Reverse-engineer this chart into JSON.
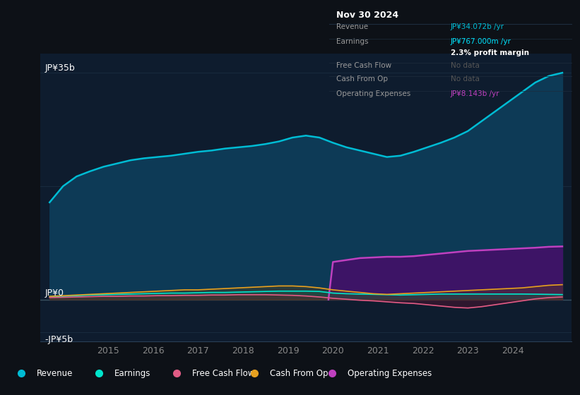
{
  "bg_color": "#0d1117",
  "plot_bg_color": "#0e1c2e",
  "grid_color": "#1a2d40",
  "title_date": "Nov 30 2024",
  "tooltip": {
    "Revenue": {
      "value": "JP¥34.072b /yr",
      "color": "#00bcd4"
    },
    "Earnings": {
      "value": "JP¥767.000m /yr",
      "color": "#00e5ff"
    },
    "profit_margin": "2.3% profit margin",
    "Free Cash Flow": {
      "value": "No data",
      "color": "#555555"
    },
    "Cash From Op": {
      "value": "No data",
      "color": "#555555"
    },
    "Operating Expenses": {
      "value": "JP¥8.143b /yr",
      "color": "#bf40bf"
    }
  },
  "ylabel_top": "JP¥35b",
  "ylabel_mid": "JP¥0",
  "ylabel_bot": "-JP¥5b",
  "ylim": [
    -6.5,
    38
  ],
  "xlim_start": 2013.5,
  "xlim_end": 2025.3,
  "xticks": [
    2015,
    2016,
    2017,
    2018,
    2019,
    2020,
    2021,
    2022,
    2023,
    2024
  ],
  "revenue_color": "#00bcd4",
  "revenue_fill": "#0d3a56",
  "earnings_color": "#00e5cc",
  "fcf_color": "#e05c85",
  "cashfromop_color": "#e6a020",
  "opex_color": "#bf40bf",
  "opex_fill": "#3d1466",
  "legend": [
    {
      "label": "Revenue",
      "color": "#00bcd4"
    },
    {
      "label": "Earnings",
      "color": "#00e5cc"
    },
    {
      "label": "Free Cash Flow",
      "color": "#e05c85"
    },
    {
      "label": "Cash From Op",
      "color": "#e6a020"
    },
    {
      "label": "Operating Expenses",
      "color": "#bf40bf"
    }
  ],
  "years": [
    2013.7,
    2014.0,
    2014.3,
    2014.6,
    2014.9,
    2015.2,
    2015.5,
    2015.8,
    2016.1,
    2016.4,
    2016.7,
    2017.0,
    2017.3,
    2017.6,
    2017.9,
    2018.2,
    2018.5,
    2018.8,
    2019.1,
    2019.4,
    2019.7,
    2020.0,
    2020.3,
    2020.6,
    2020.9,
    2021.2,
    2021.5,
    2021.8,
    2022.1,
    2022.4,
    2022.7,
    2023.0,
    2023.3,
    2023.6,
    2023.9,
    2024.2,
    2024.5,
    2024.8,
    2025.1
  ],
  "revenue": [
    15.0,
    17.5,
    19.0,
    19.8,
    20.5,
    21.0,
    21.5,
    21.8,
    22.0,
    22.2,
    22.5,
    22.8,
    23.0,
    23.3,
    23.5,
    23.7,
    24.0,
    24.4,
    25.0,
    25.3,
    25.0,
    24.2,
    23.5,
    23.0,
    22.5,
    22.0,
    22.2,
    22.8,
    23.5,
    24.2,
    25.0,
    26.0,
    27.5,
    29.0,
    30.5,
    32.0,
    33.5,
    34.5,
    35.0
  ],
  "earnings": [
    0.4,
    0.5,
    0.6,
    0.7,
    0.75,
    0.8,
    0.85,
    0.9,
    0.95,
    1.0,
    1.0,
    1.05,
    1.1,
    1.1,
    1.15,
    1.2,
    1.25,
    1.3,
    1.3,
    1.3,
    1.25,
    1.0,
    0.9,
    0.85,
    0.8,
    0.75,
    0.7,
    0.75,
    0.8,
    0.85,
    0.85,
    0.85,
    0.85,
    0.85,
    0.85,
    0.85,
    0.83,
    0.8,
    0.77
  ],
  "fcf": [
    0.3,
    0.35,
    0.4,
    0.45,
    0.5,
    0.5,
    0.55,
    0.55,
    0.6,
    0.6,
    0.65,
    0.65,
    0.7,
    0.7,
    0.75,
    0.75,
    0.75,
    0.7,
    0.65,
    0.55,
    0.4,
    0.2,
    0.05,
    -0.1,
    -0.2,
    -0.35,
    -0.5,
    -0.6,
    -0.8,
    -1.0,
    -1.2,
    -1.3,
    -1.1,
    -0.8,
    -0.5,
    -0.2,
    0.1,
    0.3,
    0.4
  ],
  "cashfromop": [
    0.5,
    0.6,
    0.7,
    0.8,
    0.9,
    1.0,
    1.1,
    1.2,
    1.3,
    1.4,
    1.5,
    1.5,
    1.6,
    1.7,
    1.8,
    1.9,
    2.0,
    2.1,
    2.1,
    2.0,
    1.8,
    1.5,
    1.3,
    1.1,
    0.9,
    0.8,
    0.9,
    1.0,
    1.1,
    1.2,
    1.3,
    1.4,
    1.5,
    1.6,
    1.7,
    1.8,
    2.0,
    2.2,
    2.3
  ],
  "opex_x": [
    2019.9,
    2020.0,
    2020.3,
    2020.6,
    2020.9,
    2021.2,
    2021.5,
    2021.8,
    2022.1,
    2022.4,
    2022.7,
    2023.0,
    2023.3,
    2023.6,
    2023.9,
    2024.2,
    2024.5,
    2024.8,
    2025.1
  ],
  "opex_y": [
    0.0,
    5.8,
    6.1,
    6.4,
    6.5,
    6.6,
    6.6,
    6.7,
    6.9,
    7.1,
    7.3,
    7.5,
    7.6,
    7.7,
    7.8,
    7.9,
    8.0,
    8.143,
    8.2
  ]
}
